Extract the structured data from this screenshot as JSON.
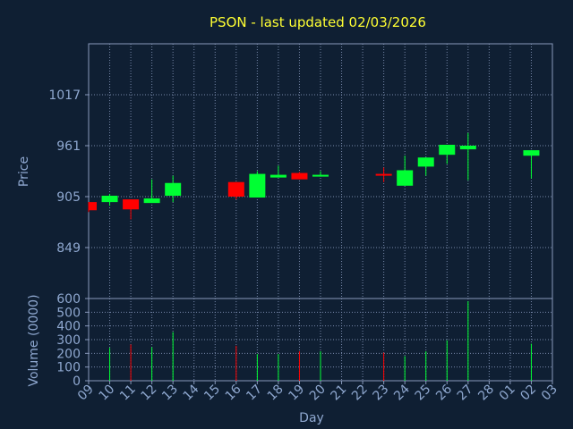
{
  "chart_data": {
    "type": "candlestick",
    "title": "PSON - last updated 02/03/2026",
    "xlabel": "Day",
    "price_panel": {
      "ylabel": "Price",
      "yticks": [
        849,
        905,
        961,
        1017
      ],
      "ylim": [
        793,
        1073
      ]
    },
    "volume_panel": {
      "ylabel": "Volume (0000)",
      "yticks": [
        0,
        100,
        200,
        300,
        400,
        500,
        600
      ],
      "ylim": [
        0,
        600
      ]
    },
    "x_tick_labels": [
      "09",
      "10",
      "11",
      "12",
      "13",
      "14",
      "15",
      "16",
      "17",
      "18",
      "19",
      "20",
      "21",
      "22",
      "23",
      "24",
      "25",
      "26",
      "27",
      "28",
      "01",
      "02",
      "03"
    ],
    "candles": [
      {
        "day_index": 0,
        "open": 899,
        "close": 890,
        "high": 899,
        "low": 888
      },
      {
        "day_index": 1,
        "open": 899,
        "close": 906,
        "high": 908,
        "low": 895
      },
      {
        "day_index": 2,
        "open": 902,
        "close": 891,
        "high": 902,
        "low": 880
      },
      {
        "day_index": 3,
        "open": 898,
        "close": 903,
        "high": 924,
        "low": 898
      },
      {
        "day_index": 4,
        "open": 906,
        "close": 920,
        "high": 928,
        "low": 899
      },
      {
        "day_index": 7,
        "open": 921,
        "close": 905,
        "high": 921,
        "low": 902
      },
      {
        "day_index": 8,
        "open": 904,
        "close": 930,
        "high": 933,
        "low": 904
      },
      {
        "day_index": 9,
        "open": 926,
        "close": 929,
        "high": 939,
        "low": 926
      },
      {
        "day_index": 10,
        "open": 931,
        "close": 924,
        "high": 932,
        "low": 924
      },
      {
        "day_index": 11,
        "open": 927,
        "close": 929,
        "high": 933,
        "low": 927
      },
      {
        "day_index": 14,
        "open": 930,
        "close": 928,
        "high": 937,
        "low": 921
      },
      {
        "day_index": 15,
        "open": 917,
        "close": 934,
        "high": 950,
        "low": 917
      },
      {
        "day_index": 16,
        "open": 938,
        "close": 948,
        "high": 948,
        "low": 928
      },
      {
        "day_index": 17,
        "open": 951,
        "close": 962,
        "high": 962,
        "low": 941
      },
      {
        "day_index": 18,
        "open": 957,
        "close": 961,
        "high": 975,
        "low": 923
      },
      {
        "day_index": 21,
        "open": 950,
        "close": 956,
        "high": 956,
        "low": 925
      }
    ],
    "volume": [
      {
        "day_index": 1,
        "value": 240,
        "color": "green"
      },
      {
        "day_index": 2,
        "value": 265,
        "color": "red"
      },
      {
        "day_index": 3,
        "value": 245,
        "color": "green"
      },
      {
        "day_index": 4,
        "value": 355,
        "color": "green"
      },
      {
        "day_index": 7,
        "value": 255,
        "color": "red"
      },
      {
        "day_index": 8,
        "value": 195,
        "color": "green"
      },
      {
        "day_index": 9,
        "value": 195,
        "color": "green"
      },
      {
        "day_index": 10,
        "value": 215,
        "color": "red"
      },
      {
        "day_index": 11,
        "value": 215,
        "color": "green"
      },
      {
        "day_index": 14,
        "value": 205,
        "color": "red"
      },
      {
        "day_index": 15,
        "value": 180,
        "color": "green"
      },
      {
        "day_index": 16,
        "value": 215,
        "color": "green"
      },
      {
        "day_index": 17,
        "value": 295,
        "color": "green"
      },
      {
        "day_index": 18,
        "value": 580,
        "color": "green"
      },
      {
        "day_index": 21,
        "value": 270,
        "color": "green"
      }
    ],
    "grid": true,
    "colors": {
      "background": "#0f1f33",
      "up": "#00ff33",
      "down": "#ff0000",
      "axis": "#8899bb",
      "grid": "#7788aa",
      "text": "#8fa8d0",
      "title": "#ffff33"
    }
  }
}
